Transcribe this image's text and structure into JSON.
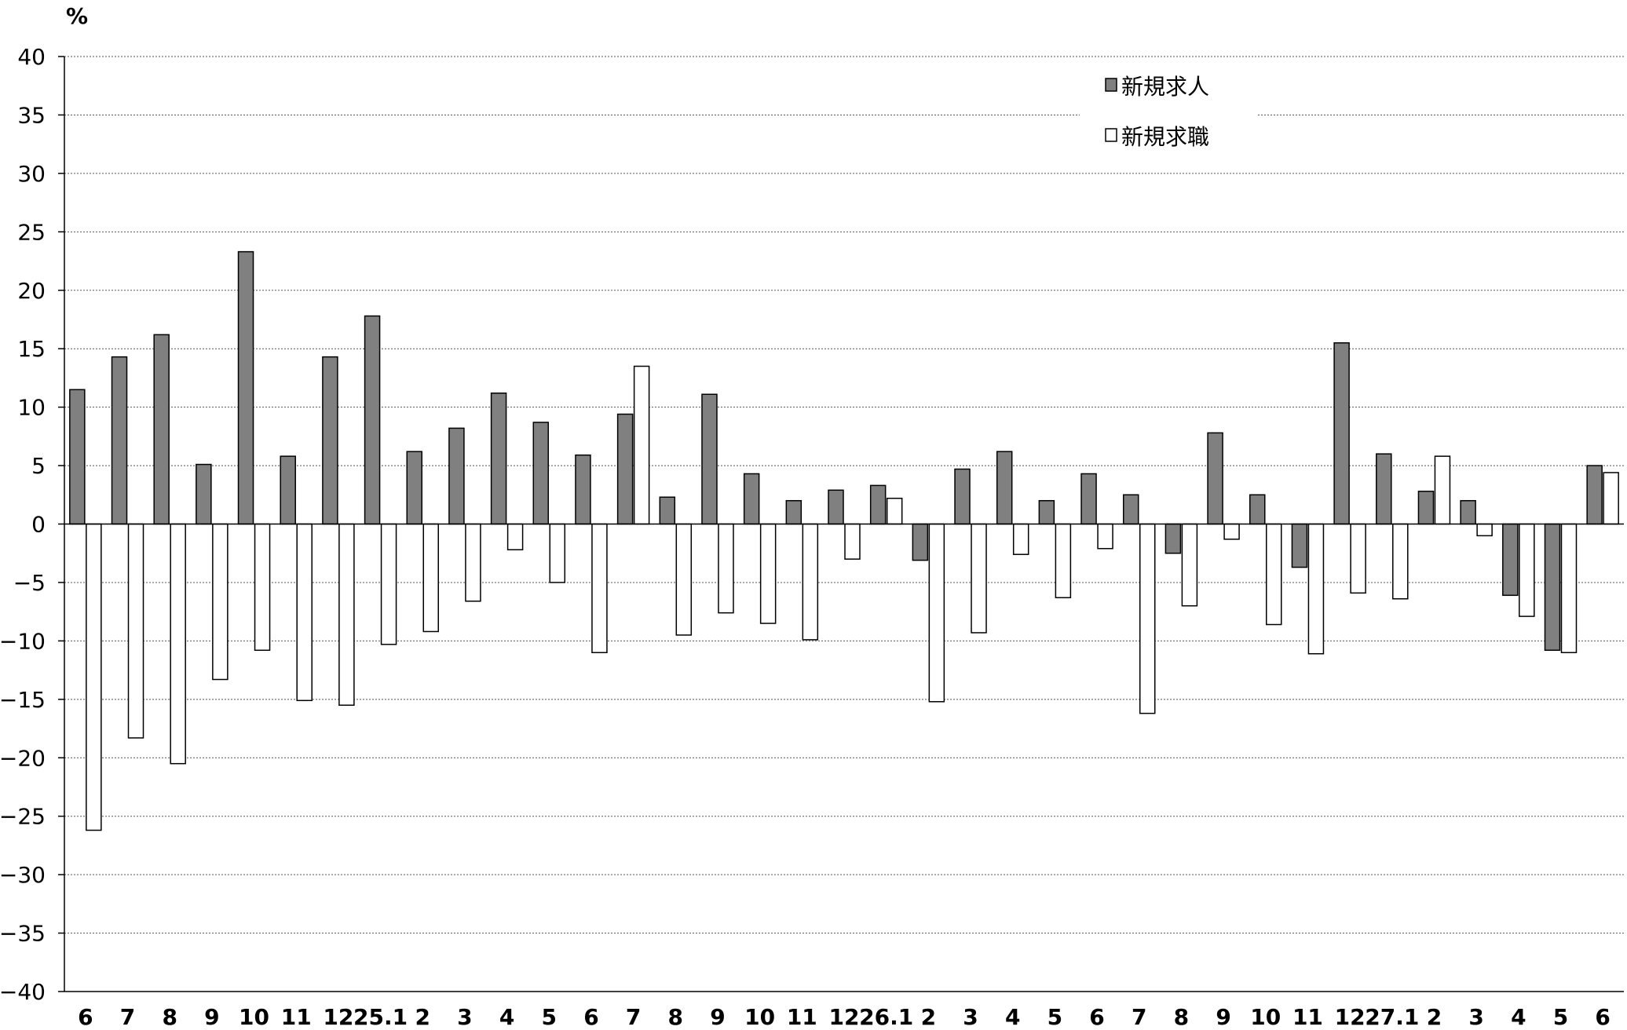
{
  "chart_data": {
    "type": "bar",
    "title": "",
    "xlabel": "",
    "ylabel": "%",
    "ylim": [
      -40,
      40
    ],
    "ytick_step": 5,
    "grid": true,
    "legend_position": "top-right",
    "categories": [
      "6",
      "7",
      "8",
      "9",
      "10",
      "11",
      "12",
      "25.1",
      "2",
      "3",
      "4",
      "5",
      "6",
      "7",
      "8",
      "9",
      "10",
      "11",
      "12",
      "26.1",
      "2",
      "3",
      "4",
      "5",
      "6",
      "7",
      "8",
      "9",
      "10",
      "11",
      "12",
      "27.1",
      "2",
      "3",
      "4",
      "5",
      "6"
    ],
    "series": [
      {
        "name": "新規求人",
        "color": "#808080",
        "values": [
          11.5,
          14.3,
          16.2,
          5.1,
          23.3,
          5.8,
          14.3,
          17.8,
          6.2,
          8.2,
          11.2,
          8.7,
          5.9,
          9.4,
          2.3,
          11.1,
          4.3,
          2.0,
          2.9,
          3.3,
          -3.1,
          4.7,
          6.2,
          2.0,
          4.3,
          2.5,
          -2.5,
          7.8,
          2.5,
          -3.7,
          15.5,
          6.0,
          2.8,
          2.0,
          -6.1,
          -10.8,
          5.0
        ]
      },
      {
        "name": "新規求職",
        "color": "#ffffff",
        "values": [
          -26.2,
          -18.3,
          -20.5,
          -13.3,
          -10.8,
          -15.1,
          -15.5,
          -10.3,
          -9.2,
          -6.6,
          -2.2,
          -5.0,
          -11.0,
          13.5,
          -9.5,
          -7.6,
          -8.5,
          -9.9,
          -3.0,
          2.2,
          -15.2,
          -9.3,
          -2.6,
          -6.3,
          -2.1,
          -16.2,
          -7.0,
          -1.3,
          -8.6,
          -11.1,
          -5.9,
          -6.4,
          5.8,
          -1.0,
          -7.9,
          -11.0,
          4.4
        ]
      }
    ]
  }
}
